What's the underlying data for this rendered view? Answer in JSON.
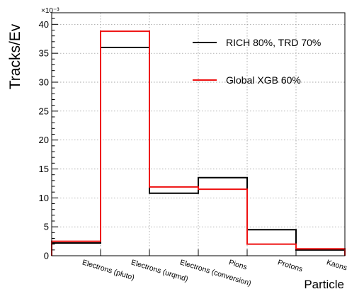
{
  "chart_data": {
    "type": "histogram",
    "ylabel": "Tracks/Ev",
    "xlabel": "Particle",
    "y_exponent_label": "×10⁻³",
    "ylim": [
      0,
      42
    ],
    "yticks": [
      0,
      5,
      10,
      15,
      20,
      25,
      30,
      35,
      40
    ],
    "grid": true,
    "categories": [
      "Electrons (pluto)",
      "Electrons (urqmd)",
      "Electrons (conversion)",
      "Pions",
      "Protons",
      "Kaons"
    ],
    "series": [
      {
        "name": "RICH 80%, TRD 70%",
        "color": "#000000",
        "values": [
          2.2,
          36.0,
          10.8,
          13.5,
          4.5,
          1.0
        ]
      },
      {
        "name": "Global XGB 60%",
        "color": "#ee1111",
        "values": [
          2.5,
          38.8,
          11.9,
          11.5,
          2.0,
          1.2
        ]
      }
    ],
    "legend_position": "top-right"
  }
}
